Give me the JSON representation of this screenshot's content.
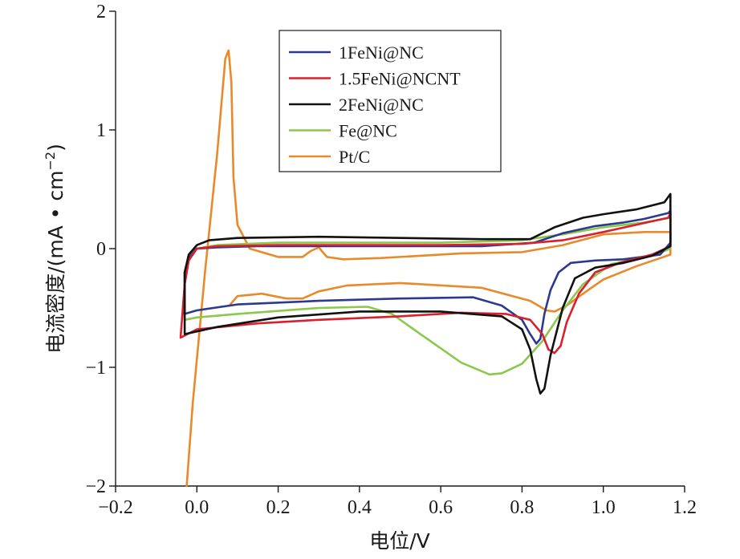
{
  "chart_data": {
    "type": "line",
    "title": "",
    "xlabel": "电位/V",
    "ylabel_main": "电流密度/(mA • cm",
    "ylabel_sup": "−2",
    "ylabel_close": ")",
    "xlim": [
      -0.2,
      1.2
    ],
    "ylim": [
      -2,
      2
    ],
    "xticks": [
      -0.2,
      0.0,
      0.2,
      0.4,
      0.6,
      0.8,
      1.0,
      1.2
    ],
    "xtick_labels": [
      "−0.2",
      "0.0",
      "0.2",
      "0.4",
      "0.6",
      "0.8",
      "1.0",
      "1.2"
    ],
    "yticks": [
      -2,
      -1,
      0,
      1,
      2
    ],
    "ytick_labels": [
      "−2",
      "−1",
      "0",
      "1",
      "2"
    ],
    "grid": false,
    "legend_position": "top-center",
    "series": [
      {
        "name": "1FeNi@NC",
        "color": "#2b3a8f",
        "x": [
          -0.03,
          -0.03,
          -0.02,
          0.0,
          0.05,
          0.15,
          0.3,
          0.5,
          0.7,
          0.83,
          0.9,
          0.98,
          1.05,
          1.1,
          1.16,
          1.165,
          1.165,
          1.14,
          1.05,
          0.98,
          0.92,
          0.89,
          0.87,
          0.855,
          0.845,
          0.835,
          0.82,
          0.8,
          0.75,
          0.68,
          0.5,
          0.3,
          0.1,
          0.0,
          -0.03
        ],
        "y": [
          -0.55,
          -0.2,
          -0.08,
          0.0,
          0.01,
          0.02,
          0.02,
          0.02,
          0.02,
          0.05,
          0.13,
          0.19,
          0.22,
          0.25,
          0.3,
          0.32,
          0.05,
          -0.05,
          -0.09,
          -0.1,
          -0.12,
          -0.2,
          -0.35,
          -0.55,
          -0.76,
          -0.8,
          -0.72,
          -0.6,
          -0.48,
          -0.41,
          -0.42,
          -0.44,
          -0.47,
          -0.52,
          -0.55
        ]
      },
      {
        "name": "1.5FeNi@NCNT",
        "color": "#d8202f",
        "x": [
          -0.04,
          -0.03,
          -0.02,
          0.0,
          0.05,
          0.2,
          0.4,
          0.6,
          0.8,
          0.9,
          1.0,
          1.08,
          1.16,
          1.165,
          1.165,
          1.12,
          1.04,
          0.98,
          0.94,
          0.91,
          0.895,
          0.88,
          0.865,
          0.85,
          0.82,
          0.76,
          0.65,
          0.5,
          0.3,
          0.15,
          0.0,
          -0.04
        ],
        "y": [
          -0.75,
          -0.3,
          -0.1,
          0.0,
          0.02,
          0.03,
          0.03,
          0.03,
          0.04,
          0.07,
          0.14,
          0.2,
          0.26,
          0.3,
          0.02,
          -0.05,
          -0.12,
          -0.2,
          -0.38,
          -0.62,
          -0.82,
          -0.88,
          -0.85,
          -0.72,
          -0.6,
          -0.55,
          -0.54,
          -0.57,
          -0.6,
          -0.63,
          -0.68,
          -0.75
        ]
      },
      {
        "name": "2FeNi@NC",
        "color": "#111111",
        "x": [
          -0.03,
          -0.03,
          -0.02,
          0.0,
          0.03,
          0.1,
          0.3,
          0.5,
          0.7,
          0.82,
          0.88,
          0.95,
          1.0,
          1.08,
          1.15,
          1.165,
          1.165,
          1.12,
          1.05,
          0.98,
          0.93,
          0.9,
          0.87,
          0.855,
          0.845,
          0.835,
          0.82,
          0.8,
          0.75,
          0.6,
          0.4,
          0.2,
          0.05,
          -0.03
        ],
        "y": [
          -0.72,
          -0.2,
          -0.05,
          0.03,
          0.07,
          0.09,
          0.1,
          0.09,
          0.08,
          0.08,
          0.18,
          0.26,
          0.29,
          0.33,
          0.39,
          0.46,
          0.02,
          -0.06,
          -0.12,
          -0.16,
          -0.25,
          -0.5,
          -0.9,
          -1.18,
          -1.22,
          -1.1,
          -0.85,
          -0.68,
          -0.57,
          -0.53,
          -0.53,
          -0.58,
          -0.66,
          -0.72
        ]
      },
      {
        "name": "Fe@NC",
        "color": "#8cc84b",
        "x": [
          -0.03,
          -0.03,
          -0.02,
          0.0,
          0.05,
          0.2,
          0.4,
          0.6,
          0.8,
          0.9,
          1.0,
          1.1,
          1.165,
          1.165,
          1.12,
          1.02,
          0.95,
          0.9,
          0.85,
          0.8,
          0.75,
          0.72,
          0.65,
          0.55,
          0.48,
          0.42,
          0.3,
          0.1,
          0.0,
          -0.03
        ],
        "y": [
          -0.6,
          -0.2,
          -0.05,
          0.0,
          0.03,
          0.05,
          0.05,
          0.05,
          0.07,
          0.12,
          0.18,
          0.22,
          0.26,
          0.0,
          -0.06,
          -0.13,
          -0.3,
          -0.52,
          -0.78,
          -0.97,
          -1.05,
          -1.06,
          -0.96,
          -0.72,
          -0.55,
          -0.49,
          -0.5,
          -0.55,
          -0.58,
          -0.6
        ]
      },
      {
        "name": "Pt/C",
        "color": "#e88a2a",
        "x": [
          -0.025,
          -0.01,
          0.02,
          0.05,
          0.07,
          0.078,
          0.085,
          0.09,
          0.1,
          0.13,
          0.2,
          0.26,
          0.28,
          0.3,
          0.32,
          0.36,
          0.45,
          0.55,
          0.65,
          0.8,
          0.9,
          1.0,
          1.1,
          1.165,
          1.165,
          1.14,
          1.08,
          1.0,
          0.95,
          0.91,
          0.88,
          0.86,
          0.82,
          0.7,
          0.5,
          0.37,
          0.3,
          0.26,
          0.22,
          0.16,
          0.1,
          0.08
        ],
        "y": [
          -2.0,
          -1.3,
          -0.2,
          0.8,
          1.6,
          1.67,
          1.4,
          0.6,
          0.2,
          0.0,
          -0.07,
          -0.07,
          -0.02,
          0.01,
          -0.07,
          -0.09,
          -0.08,
          -0.06,
          -0.04,
          -0.03,
          0.03,
          0.12,
          0.14,
          0.14,
          -0.05,
          -0.08,
          -0.15,
          -0.26,
          -0.38,
          -0.48,
          -0.53,
          -0.52,
          -0.44,
          -0.33,
          -0.29,
          -0.31,
          -0.36,
          -0.42,
          -0.42,
          -0.38,
          -0.4,
          -0.48
        ]
      }
    ]
  }
}
